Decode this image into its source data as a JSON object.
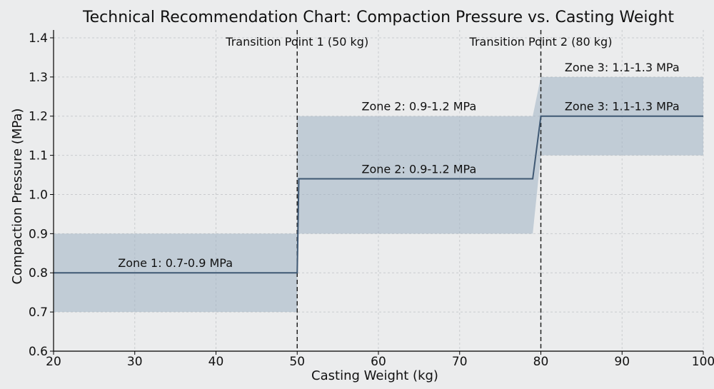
{
  "chart_data": {
    "type": "line",
    "title": "Technical Recommendation Chart: Compaction Pressure vs. Casting Weight",
    "xlabel": "Casting Weight (kg)",
    "ylabel": "Compaction Pressure (MPa)",
    "xlim": [
      20,
      100
    ],
    "ylim": [
      0.6,
      1.42
    ],
    "x_ticks": [
      20,
      30,
      40,
      50,
      60,
      70,
      80,
      90,
      100
    ],
    "y_ticks": [
      0.6,
      0.7,
      0.8,
      0.9,
      1.0,
      1.1,
      1.2,
      1.3,
      1.4
    ],
    "x_tick_labels": [
      "20",
      "30",
      "40",
      "50",
      "60",
      "70",
      "80",
      "90",
      "100"
    ],
    "y_tick_labels": [
      "0.6",
      "0.7",
      "0.8",
      "0.9",
      "1.0",
      "1.1",
      "1.2",
      "1.3",
      "1.4"
    ],
    "grid": true,
    "line_color": "#3f5873",
    "band_color": "#9fb3c3",
    "series": [
      {
        "x": [
          20,
          50,
          50.2,
          79,
          80,
          100
        ],
        "y": [
          0.8,
          0.8,
          1.04,
          1.04,
          1.2,
          1.2
        ]
      }
    ],
    "bands": [
      {
        "x": [
          20,
          50
        ],
        "ymin": [
          0.7,
          0.7
        ],
        "ymax": [
          0.9,
          0.9
        ]
      },
      {
        "x": [
          50,
          79,
          80,
          100
        ],
        "ymin": [
          0.9,
          0.9,
          1.1,
          1.1
        ],
        "ymax": [
          1.2,
          1.2,
          1.3,
          1.3
        ]
      }
    ],
    "vlines": [
      {
        "x": 50,
        "label": "Transition Point 1 (50 kg)"
      },
      {
        "x": 80,
        "label": "Transition Point 2 (80 kg)"
      }
    ],
    "annotations": [
      {
        "text": "Zone 1: 0.7-0.9 MPa",
        "x": 35,
        "y": 0.8
      },
      {
        "text": "Zone 2: 0.9-1.2 MPa",
        "x": 65,
        "y": 1.2
      },
      {
        "text": "Zone 2: 0.9-1.2 MPa",
        "x": 65,
        "y": 1.04
      },
      {
        "text": "Zone 3: 1.1-1.3 MPa",
        "x": 90,
        "y": 1.3
      },
      {
        "text": "Zone 3: 1.1-1.3 MPa",
        "x": 90,
        "y": 1.2
      }
    ]
  }
}
